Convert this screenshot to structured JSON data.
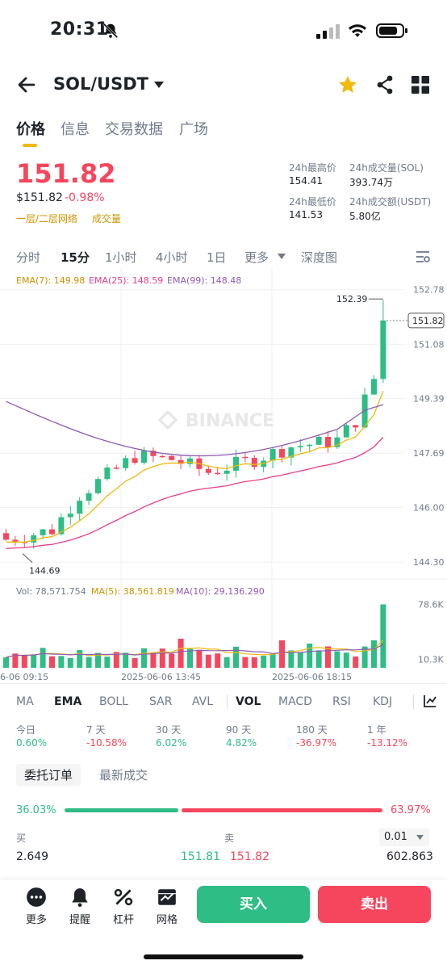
{
  "status": {
    "time": "20:31"
  },
  "header": {
    "pair": "SOL/USDT"
  },
  "tabs": [
    "价格",
    "信息",
    "交易数据",
    "广场"
  ],
  "price": {
    "last": "151.82",
    "usd": "$151.82",
    "change": "-0.98%",
    "layer_label": "一层/二层网络",
    "volume_label": "成交量"
  },
  "stats": {
    "high_label": "24h最高价",
    "high": "154.41",
    "low_label": "24h最低价",
    "low": "141.53",
    "vol_sol_label": "24h成交量(SOL)",
    "vol_sol": "393.74万",
    "vol_usdt_label": "24h成交额(USDT)",
    "vol_usdt": "5.80亿"
  },
  "intervals": [
    "分时",
    "15分",
    "1小时",
    "4小时",
    "1日",
    "更多",
    "深度图"
  ],
  "chart_labels": {
    "ema7": "EMA(7): 149.98",
    "ema25": "EMA(25): 148.59",
    "ema99": "EMA(99): 148.48",
    "price_ticks": [
      "152.78",
      "151.08",
      "149.39",
      "147.69",
      "146.00",
      "144.30"
    ],
    "current_price_tag": "151.82",
    "high_marker": "152.39",
    "low_marker": "144.69",
    "watermark": "BINANCE",
    "vol_text": "Vol: 78,571.754",
    "ma5_text": "MA(5): 38,561.819",
    "ma10_text": "MA(10): 29,136.290",
    "vol_ticks": [
      "78.6K",
      "10.3K"
    ],
    "time_ticks": [
      "6-06 09:15",
      "2025-06-06 13:45",
      "2025-06-06 18:15"
    ]
  },
  "colors": {
    "up": "#2ebd85",
    "down": "#f6465d",
    "ema7": "#f0b90b",
    "ema25": "#e83e8c",
    "ema99": "#8e5ab5",
    "accent": "#f0b90b"
  },
  "indicators": [
    "MA",
    "EMA",
    "BOLL",
    "SAR",
    "AVL",
    "VOL",
    "MACD",
    "RSI",
    "KDJ"
  ],
  "performance": [
    {
      "label": "今日",
      "value": "0.60%",
      "dir": "up"
    },
    {
      "label": "7 天",
      "value": "-10.58%",
      "dir": "down"
    },
    {
      "label": "30 天",
      "value": "6.02%",
      "dir": "up"
    },
    {
      "label": "90 天",
      "value": "4.82%",
      "dir": "up"
    },
    {
      "label": "180 天",
      "value": "-36.97%",
      "dir": "down"
    },
    {
      "label": "1 年",
      "value": "-13.12%",
      "dir": "down"
    }
  ],
  "orderbook": {
    "tabs": [
      "委托订单",
      "最新成交"
    ],
    "buy_ratio": "36.03%",
    "sell_ratio": "63.97%",
    "buy_label": "买",
    "sell_label": "卖",
    "precision": "0.01",
    "row": {
      "bid_qty": "2.649",
      "bid_price": "151.81",
      "ask_price": "151.82",
      "ask_qty": "602.863"
    }
  },
  "bottom": {
    "items": [
      "更多",
      "提醒",
      "杠杆",
      "网格"
    ],
    "buy": "买入",
    "sell": "卖出"
  }
}
